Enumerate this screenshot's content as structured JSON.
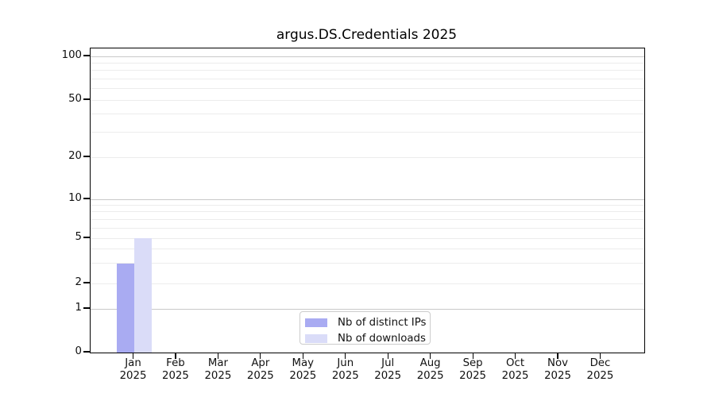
{
  "chart_data": {
    "type": "bar",
    "title": "argus.DS.Credentials 2025",
    "xlabel": "",
    "ylabel": "",
    "year": "2025",
    "months": [
      "Jan",
      "Feb",
      "Mar",
      "Apr",
      "May",
      "Jun",
      "Jul",
      "Aug",
      "Sep",
      "Oct",
      "Nov",
      "Dec"
    ],
    "yticks": [
      0,
      1,
      2,
      5,
      10,
      20,
      50,
      100
    ],
    "yscale": "log-like (linear 0-1, logarithmic above 1)",
    "ylim": [
      0,
      113
    ],
    "grid": "horizontal major and minor gridlines",
    "legend_position": "bottom-center inside plot",
    "series": [
      {
        "name": "Nb of distinct IPs",
        "color": "#a9abf2",
        "values": [
          3,
          0,
          0,
          0,
          0,
          0,
          0,
          0,
          0,
          0,
          0,
          0
        ]
      },
      {
        "name": "Nb of downloads",
        "color": "#dadcf8",
        "values": [
          5,
          0,
          0,
          0,
          0,
          0,
          0,
          0,
          0,
          0,
          0,
          0
        ]
      }
    ],
    "colors": {
      "decade_gridline": "#c9c9c9",
      "minor_gridline": "#ececec",
      "legend_border": "#cccccc",
      "spine": "#000000"
    }
  }
}
